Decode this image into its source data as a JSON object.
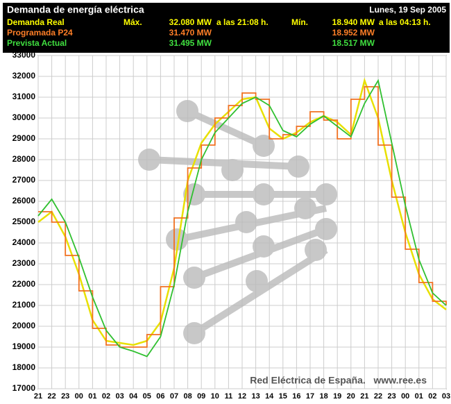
{
  "chart_data": {
    "type": "line",
    "title": "Demanda de energía eléctrica",
    "date": "Lunes, 19 Sep 2005",
    "max_label": "Máx.",
    "min_label": "Mín.",
    "annotation": "Red Eléctrica de España.   www.ree.es",
    "x": [
      "21",
      "22",
      "23",
      "00",
      "01",
      "02",
      "03",
      "04",
      "05",
      "06",
      "07",
      "08",
      "09",
      "10",
      "11",
      "12",
      "13",
      "14",
      "15",
      "16",
      "17",
      "18",
      "19",
      "20",
      "21",
      "22",
      "23",
      "00",
      "01",
      "02",
      "03"
    ],
    "ylim": [
      17000,
      33000
    ],
    "yticks": [
      17000,
      18000,
      19000,
      20000,
      21000,
      22000,
      23000,
      24000,
      25000,
      26000,
      27000,
      28000,
      29000,
      30000,
      31000,
      32000,
      33000
    ],
    "grid": true,
    "series": [
      {
        "name": "Demanda Real",
        "color": "#e8e000",
        "max": "32.080 MW",
        "max_time": "a las 21:08 h.",
        "min": "18.940 MW",
        "min_time": "a las 04:13 h.",
        "values": [
          25000,
          25500,
          24300,
          22500,
          20300,
          19300,
          19200,
          19100,
          19300,
          20200,
          22800,
          27000,
          28800,
          29700,
          30300,
          30900,
          31000,
          29500,
          29000,
          29300,
          29800,
          30100,
          29800,
          29200,
          31800,
          30000,
          27000,
          24500,
          22500,
          21300,
          20800
        ]
      },
      {
        "name": "Programada P24",
        "color": "#f07020",
        "drawstyle": "steps",
        "max": "31.470 MW",
        "min": "18.952 MW",
        "values": [
          25500,
          25000,
          23400,
          21700,
          19900,
          19100,
          19000,
          19000,
          19600,
          21900,
          25200,
          27600,
          28700,
          30000,
          30600,
          31200,
          30900,
          29000,
          29200,
          29600,
          30300,
          29900,
          29000,
          30900,
          31500,
          28700,
          26200,
          23700,
          22100,
          21200,
          21000
        ]
      },
      {
        "name": "Prevista Actual",
        "color": "#30c030",
        "max": "31.495 MW",
        "min": "18.517 MW",
        "values": [
          25300,
          26100,
          25000,
          23300,
          21400,
          19800,
          19000,
          18800,
          18550,
          19500,
          22000,
          25500,
          28000,
          29300,
          30000,
          30700,
          31000,
          30600,
          29400,
          29100,
          29700,
          30100,
          29600,
          29100,
          30700,
          31800,
          28800,
          25800,
          23200,
          21600,
          21000
        ]
      }
    ]
  }
}
